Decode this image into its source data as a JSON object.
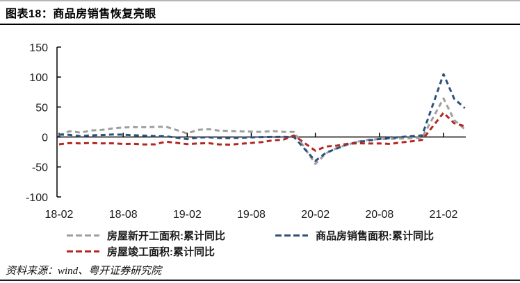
{
  "header": {
    "title": "图表18：商品房销售恢复亮眼"
  },
  "footer": {
    "source": "资料来源：wind、粤开证券研究院"
  },
  "chart_data": {
    "type": "line",
    "title": "商品房销售恢复亮眼",
    "line_style": "dashed",
    "grid": false,
    "legend_position": "bottom",
    "ylim": [
      -100,
      150
    ],
    "yticks": [
      150,
      100,
      50,
      0,
      -50,
      -100
    ],
    "xticklabels": [
      "18-02",
      "18-08",
      "19-02",
      "19-08",
      "20-02",
      "20-08",
      "21-02"
    ],
    "unit": "%",
    "x": [
      "18-02",
      "18-03",
      "18-04",
      "18-05",
      "18-06",
      "18-07",
      "18-08",
      "18-09",
      "18-10",
      "18-11",
      "18-12",
      "19-02",
      "19-03",
      "19-04",
      "19-05",
      "19-06",
      "19-07",
      "19-08",
      "19-09",
      "19-10",
      "19-11",
      "19-12",
      "20-02",
      "20-03",
      "20-04",
      "20-05",
      "20-06",
      "20-07",
      "20-08",
      "20-09",
      "20-10",
      "20-11",
      "20-12",
      "21-02",
      "21-03",
      "21-04"
    ],
    "series": [
      {
        "key": "new-starts",
        "name": "房屋新开工面积:累计同比",
        "color": "#9e9e9e",
        "values": [
          2.9,
          9.7,
          7.3,
          10.8,
          11.8,
          14.4,
          15.9,
          16.4,
          16.3,
          16.8,
          17.2,
          6.0,
          11.9,
          13.1,
          10.5,
          10.1,
          9.5,
          8.9,
          8.6,
          10.0,
          8.6,
          8.5,
          -44.9,
          -27.2,
          -18.4,
          -12.8,
          -7.6,
          -4.5,
          -3.6,
          -3.4,
          -2.6,
          -2.0,
          -1.2,
          64.3,
          28.2,
          12.8
        ]
      },
      {
        "key": "sales",
        "name": "商品房销售面积:累计同比",
        "color": "#2e517c",
        "values": [
          4.1,
          3.6,
          1.3,
          2.9,
          3.3,
          4.2,
          4.0,
          2.9,
          2.2,
          1.4,
          1.3,
          -3.6,
          -0.9,
          -0.3,
          -1.6,
          -1.8,
          -1.3,
          -0.6,
          -0.1,
          0.1,
          0.2,
          -0.1,
          -39.9,
          -26.3,
          -19.3,
          -12.3,
          -8.4,
          -5.8,
          -3.3,
          -1.8,
          0.0,
          1.3,
          2.6,
          104.9,
          63.8,
          48.1
        ]
      },
      {
        "key": "completions",
        "name": "房屋竣工面积:累计同比",
        "color": "#b22822",
        "values": [
          -12.1,
          -10.1,
          -10.7,
          -10.1,
          -10.6,
          -10.5,
          -11.6,
          -11.4,
          -12.5,
          -12.3,
          -7.8,
          -11.9,
          -10.8,
          -10.3,
          -12.4,
          -12.7,
          -11.3,
          -10.0,
          -8.6,
          -5.5,
          -4.5,
          2.6,
          -22.9,
          -15.8,
          -14.5,
          -11.3,
          -10.5,
          -10.9,
          -10.8,
          -11.6,
          -9.2,
          -7.3,
          -4.9,
          40.4,
          22.9,
          17.9
        ]
      }
    ]
  }
}
